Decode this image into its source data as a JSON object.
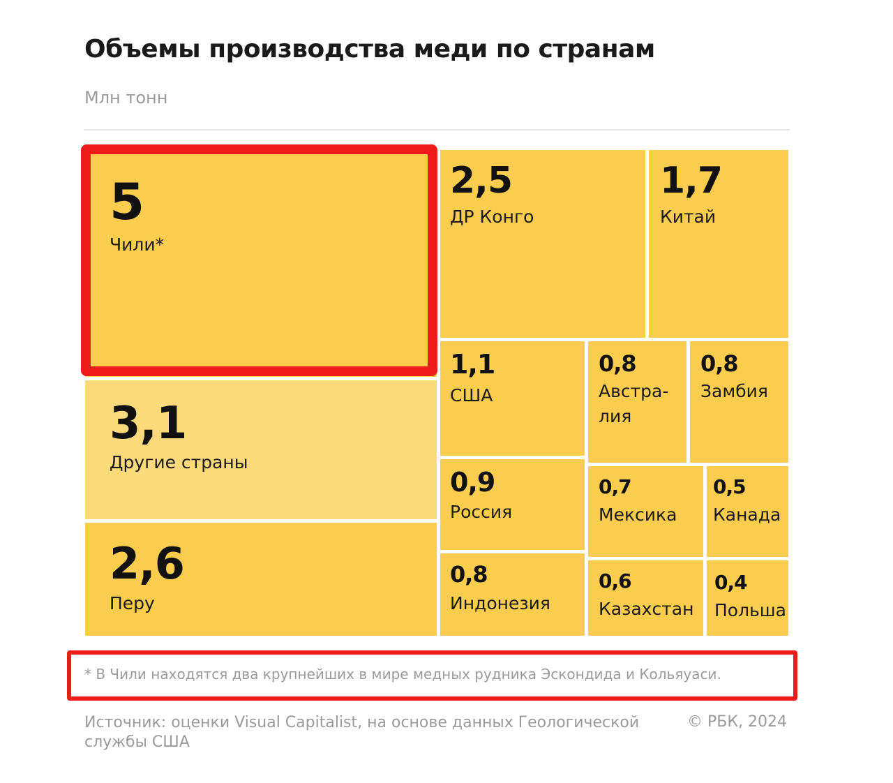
{
  "title": "Объемы производства меди по странам",
  "unit_label": "Млн тонн",
  "chart_data": {
    "type": "treemap",
    "title": "Объемы производства меди по странам",
    "unit": "Млн тонн",
    "items": [
      {
        "label": "Чили*",
        "value": 5,
        "value_text": "5"
      },
      {
        "label": "Другие страны",
        "value": 3.1,
        "value_text": "3,1"
      },
      {
        "label": "Перу",
        "value": 2.6,
        "value_text": "2,6"
      },
      {
        "label": "ДР Конго",
        "value": 2.5,
        "value_text": "2,5"
      },
      {
        "label": "Китай",
        "value": 1.7,
        "value_text": "1,7"
      },
      {
        "label": "США",
        "value": 1.1,
        "value_text": "1,1"
      },
      {
        "label": "Австра-\nлия",
        "value": 0.8,
        "value_text": "0,8"
      },
      {
        "label": "Замбия",
        "value": 0.8,
        "value_text": "0,8"
      },
      {
        "label": "Россия",
        "value": 0.9,
        "value_text": "0,9"
      },
      {
        "label": "Мексика",
        "value": 0.7,
        "value_text": "0,7"
      },
      {
        "label": "Канада",
        "value": 0.5,
        "value_text": "0,5"
      },
      {
        "label": "Индонезия",
        "value": 0.8,
        "value_text": "0,8"
      },
      {
        "label": "Казахстан",
        "value": 0.6,
        "value_text": "0,6"
      },
      {
        "label": "Польша",
        "value": 0.4,
        "value_text": "0,4"
      }
    ]
  },
  "footnote": "* В Чили находятся два крупнейших в мире медных рудника Эскондида и Кольяуаси.",
  "source": "Источник: оценки Visual Capitalist, на основе данных Геологической службы США",
  "copyright": "© РБК, 2024",
  "colors": {
    "tile": "#fbcd4f",
    "tile_other": "#fcda7c",
    "highlight": "#ee1b1b"
  }
}
